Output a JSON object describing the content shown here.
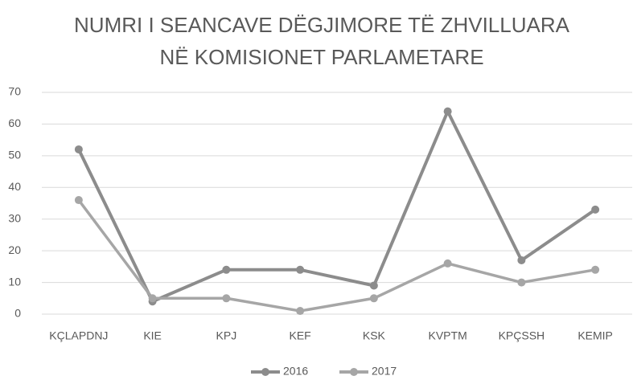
{
  "chart_data": {
    "type": "line",
    "title": [
      "NUMRI I SEANCAVE DËGJIMORE TË ZHVILLUARA",
      "NË KOMISIONET PARLAMETARE"
    ],
    "categories": [
      "KÇLAPDNJ",
      "KIE",
      "KPJ",
      "KEF",
      "KSK",
      "KVPTM",
      "KPÇSSH",
      "KEMIP"
    ],
    "series": [
      {
        "name": "2016",
        "color": "#8c8c8c",
        "values": [
          52,
          4,
          14,
          14,
          9,
          64,
          17,
          33
        ]
      },
      {
        "name": "2017",
        "color": "#a6a6a6",
        "values": [
          36,
          5,
          5,
          1,
          5,
          16,
          10,
          14
        ]
      }
    ],
    "ylim": [
      0,
      70
    ],
    "yticks": [
      0,
      10,
      20,
      30,
      40,
      50,
      60,
      70
    ],
    "grid": true,
    "legend": "bottom"
  }
}
